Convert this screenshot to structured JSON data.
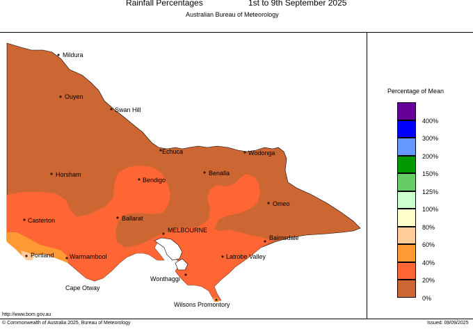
{
  "header": {
    "title": "Rainfall Percentages",
    "date_range": "1st to 9th September 2025",
    "subtitle": "Australian Bureau of Meteorology"
  },
  "legend": {
    "title": "Percentage of Mean",
    "bins": [
      {
        "label": "",
        "color": "#660099"
      },
      {
        "label": "400%",
        "color": "#0000ff"
      },
      {
        "label": "300%",
        "color": "#6699ff"
      },
      {
        "label": "200%",
        "color": "#009900"
      },
      {
        "label": "150%",
        "color": "#66cc66"
      },
      {
        "label": "125%",
        "color": "#ccffcc"
      },
      {
        "label": "100%",
        "color": "#ffffcc"
      },
      {
        "label": "80%",
        "color": "#ffcc99"
      },
      {
        "label": "60%",
        "color": "#ff9933"
      },
      {
        "label": "40%",
        "color": "#ff6633"
      },
      {
        "label": "20%",
        "color": "#cc6633"
      }
    ],
    "bottom_label": "0%"
  },
  "map": {
    "colors": {
      "base": "#cc6633",
      "mid": "#ff6633",
      "high": "#ff9933",
      "peak": "#ffcc99"
    },
    "places": [
      {
        "name": "Mildura"
      },
      {
        "name": "Ouyen"
      },
      {
        "name": "Swan Hill"
      },
      {
        "name": "Echuca"
      },
      {
        "name": "Wodonga"
      },
      {
        "name": "Horsham"
      },
      {
        "name": "Bendigo"
      },
      {
        "name": "Benalla"
      },
      {
        "name": "Omeo"
      },
      {
        "name": "Casterton"
      },
      {
        "name": "Ballarat"
      },
      {
        "name": "MELBOURNE"
      },
      {
        "name": "Bairnsdale"
      },
      {
        "name": "Portland"
      },
      {
        "name": "Warrnambool"
      },
      {
        "name": "Latrobe Valley"
      },
      {
        "name": "Wonthaggi"
      },
      {
        "name": "Cape Otway"
      },
      {
        "name": "Wilsons Promontory"
      }
    ]
  },
  "footer": {
    "url": "http://www.bom.gov.au",
    "copyright": "© Commonwealth of Australia 2025, Bureau of Meteorology",
    "issued": "Issued: 09/09/2025"
  }
}
